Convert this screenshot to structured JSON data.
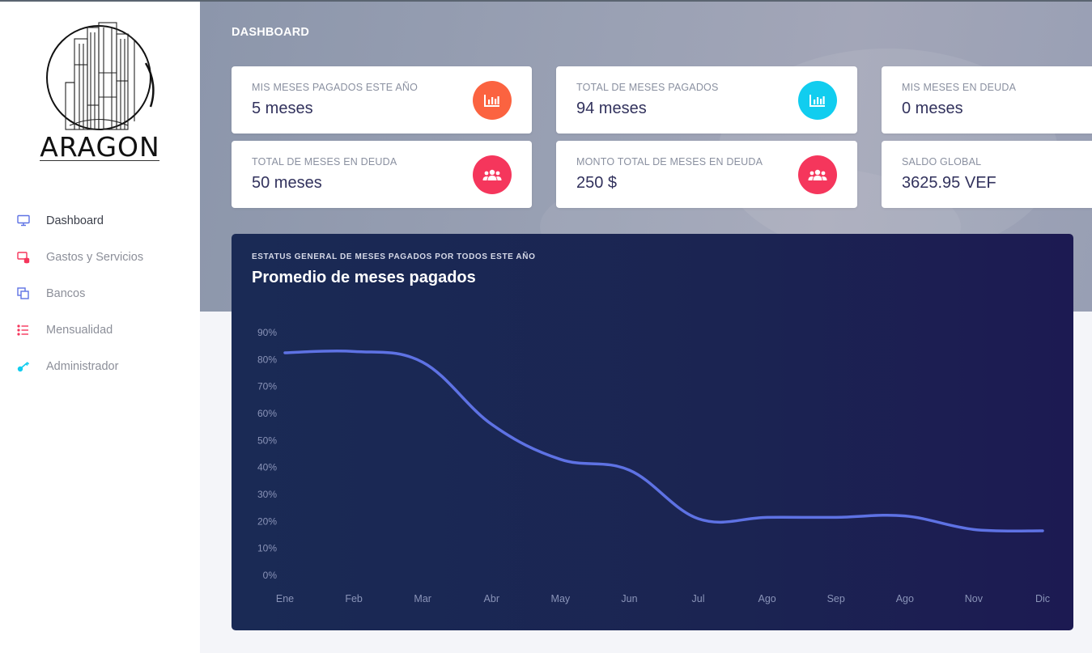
{
  "app": {
    "logo_text": "ARAGON"
  },
  "sidebar": {
    "items": [
      {
        "label": "Dashboard",
        "icon": "monitor-icon",
        "color": "#5e72e4",
        "active": true
      },
      {
        "label": "Gastos y Servicios",
        "icon": "database-icon",
        "color": "#f5365c"
      },
      {
        "label": "Bancos",
        "icon": "windows-icon",
        "color": "#5e72e4"
      },
      {
        "label": "Mensualidad",
        "icon": "list-icon",
        "color": "#f5365c"
      },
      {
        "label": "Administrador",
        "icon": "key-icon",
        "color": "#11cdef"
      }
    ]
  },
  "header": {
    "title": "DASHBOARD"
  },
  "stats": [
    {
      "label": "MIS MESES PAGADOS ESTE AÑO",
      "value": "5 meses",
      "icon": "chart-bar-icon",
      "color": "#fb6340"
    },
    {
      "label": "TOTAL DE MESES PAGADOS",
      "value": "94 meses",
      "icon": "chart-bar-icon",
      "color": "#11cdef"
    },
    {
      "label": "MIS MESES EN DEUDA",
      "value": "0 meses"
    },
    {
      "label": "TOTAL DE MESES EN DEUDA",
      "value": "50 meses",
      "icon": "users-icon",
      "color": "#f5365c"
    },
    {
      "label": "MONTO TOTAL DE MESES EN DEUDA",
      "value": "250 $",
      "icon": "users-icon",
      "color": "#f5365c"
    },
    {
      "label": "SALDO GLOBAL",
      "value": "3625.95 VEF"
    }
  ],
  "chart_card": {
    "subtitle": "ESTATUS GENERAL DE MESES PAGADOS POR TODOS ESTE AÑO",
    "title": "Promedio de meses pagados"
  },
  "chart_data": {
    "type": "line",
    "categories": [
      "Ene",
      "Feb",
      "Mar",
      "Abr",
      "May",
      "Jun",
      "Jul",
      "Ago",
      "Sep",
      "Ago",
      "Nov",
      "Dic"
    ],
    "values": [
      82.5,
      83,
      79,
      56,
      43,
      39,
      21,
      21.5,
      21.5,
      22,
      17,
      16.5
    ],
    "ylim": [
      0,
      90
    ],
    "yticks": [
      0,
      10,
      20,
      30,
      40,
      50,
      60,
      70,
      80,
      90
    ],
    "ytick_suffix": "%",
    "line_color": "#5e72e4",
    "grid": false,
    "legend": "none"
  }
}
